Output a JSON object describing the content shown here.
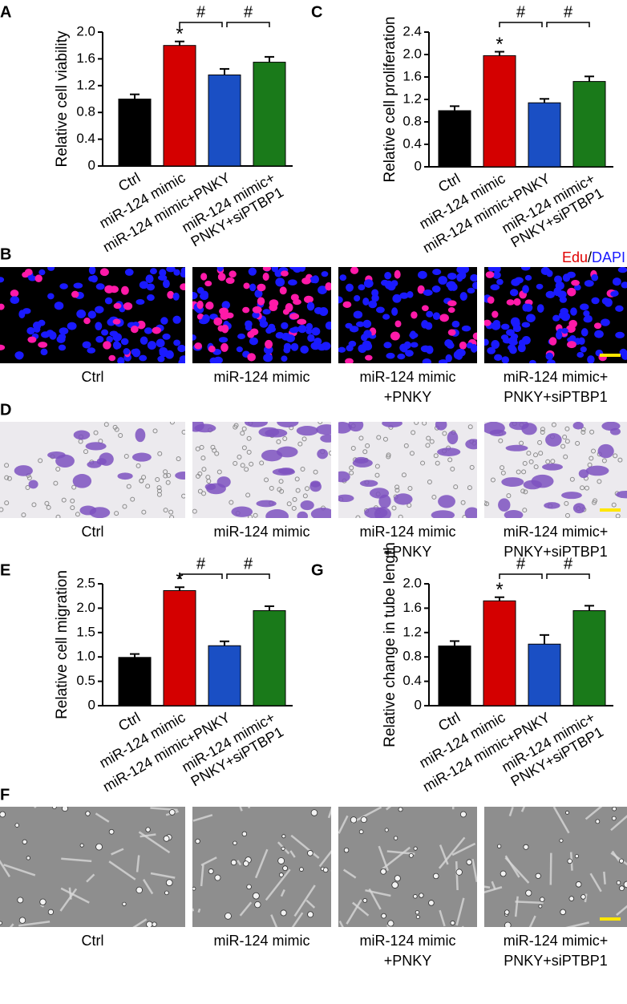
{
  "chart_data": [
    {
      "type": "bar",
      "panel": "A",
      "ylabel": "Relative cell viability",
      "categories": [
        [
          "Ctrl"
        ],
        [
          "miR-124 mimic"
        ],
        [
          "miR-124 mimic+PNKY"
        ],
        [
          "miR-124 mimic+",
          "PNKY+siPTBP1"
        ]
      ],
      "values": [
        1.0,
        1.8,
        1.36,
        1.55
      ],
      "errors": [
        0.07,
        0.06,
        0.09,
        0.08
      ],
      "colors": [
        "#000000",
        "#d40000",
        "#1a4fc4",
        "#1a7a1a"
      ],
      "ylim": [
        0,
        2
      ],
      "yticks": [
        0,
        0.4,
        0.8,
        1.2,
        1.6,
        {
          "value": 2,
          "label": "2.0"
        }
      ],
      "annotations": [
        "*",
        "#",
        "#"
      ]
    },
    {
      "type": "bar",
      "panel": "C",
      "ylabel": "Relative cell proliferation",
      "categories": [
        [
          "Ctrl"
        ],
        [
          "miR-124 mimic"
        ],
        [
          "miR-124 mimic+PNKY"
        ],
        [
          "miR-124 mimic+",
          "PNKY+siPTBP1"
        ]
      ],
      "values": [
        1.0,
        1.98,
        1.14,
        1.52
      ],
      "errors": [
        0.08,
        0.07,
        0.07,
        0.09
      ],
      "colors": [
        "#000000",
        "#d40000",
        "#1a4fc4",
        "#1a7a1a"
      ],
      "ylim": [
        0,
        2.4
      ],
      "yticks": [
        0,
        0.4,
        0.8,
        1.2,
        1.6,
        {
          "value": 2,
          "label": "2.0"
        },
        2.4
      ],
      "annotations": [
        "*",
        "#",
        "#"
      ]
    },
    {
      "type": "bar",
      "panel": "E",
      "ylabel": "Relative cell migration",
      "categories": [
        [
          "Ctrl"
        ],
        [
          "miR-124 mimic"
        ],
        [
          "miR-124 mimic+PNKY"
        ],
        [
          "miR-124 mimic+",
          "PNKY+siPTBP1"
        ]
      ],
      "values": [
        0.99,
        2.36,
        1.23,
        1.95
      ],
      "errors": [
        0.07,
        0.07,
        0.09,
        0.09
      ],
      "colors": [
        "#000000",
        "#d40000",
        "#1a4fc4",
        "#1a7a1a"
      ],
      "ylim": [
        0,
        2.5
      ],
      "yticks": [
        0,
        0.5,
        {
          "value": 1,
          "label": "1.0"
        },
        1.5,
        {
          "value": 2,
          "label": "2.0"
        },
        2.5
      ],
      "annotations": [
        "*",
        "#",
        "#"
      ]
    },
    {
      "type": "bar",
      "panel": "G",
      "ylabel": "Relative change in tube length",
      "categories": [
        [
          "Ctrl"
        ],
        [
          "miR-124 mimic"
        ],
        [
          "miR-124 mimic+PNKY"
        ],
        [
          "miR-124 mimic+",
          "PNKY+siPTBP1"
        ]
      ],
      "values": [
        0.98,
        1.72,
        1.01,
        1.56
      ],
      "errors": [
        0.08,
        0.06,
        0.15,
        0.08
      ],
      "colors": [
        "#000000",
        "#d40000",
        "#1a4fc4",
        "#1a7a1a"
      ],
      "ylim": [
        0,
        2
      ],
      "yticks": [
        0,
        0.4,
        0.8,
        1.2,
        1.6,
        {
          "value": 2,
          "label": "2.0"
        }
      ],
      "annotations": [
        "*",
        "#",
        "#"
      ]
    }
  ],
  "image_panels": [
    {
      "panel": "B",
      "legend": [
        "Edu",
        "/",
        "DAPI"
      ],
      "captions": [
        [
          "Ctrl"
        ],
        [
          "miR-124 mimic"
        ],
        [
          "miR-124 mimic",
          "+PNKY"
        ],
        [
          "miR-124 mimic+",
          "PNKY+siPTBP1"
        ]
      ]
    },
    {
      "panel": "D",
      "captions": [
        [
          "Ctrl"
        ],
        [
          "miR-124 mimic"
        ],
        [
          "miR-124 mimic",
          "+PNKY"
        ],
        [
          "miR-124 mimic+",
          "PNKY+siPTBP1"
        ]
      ]
    },
    {
      "panel": "F",
      "captions": [
        [
          "Ctrl"
        ],
        [
          "miR-124 mimic"
        ],
        [
          "miR-124 mimic",
          "+PNKY"
        ],
        [
          "miR-124 mimic+",
          "PNKY+siPTBP1"
        ]
      ]
    }
  ]
}
